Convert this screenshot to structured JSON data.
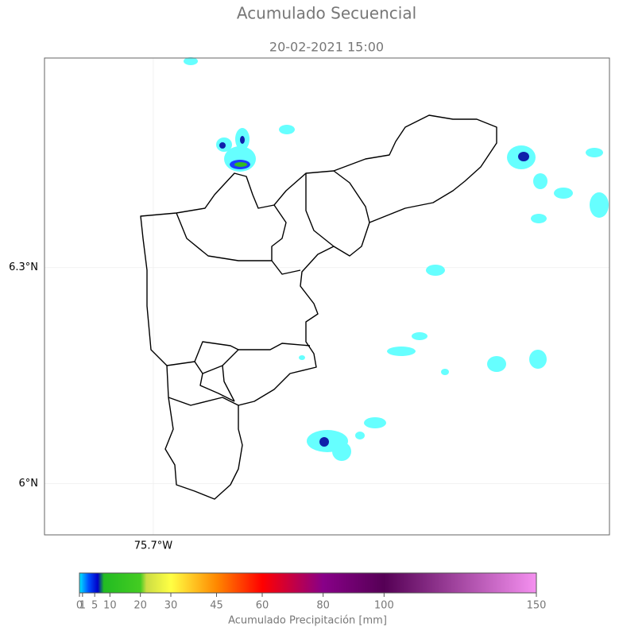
{
  "title": "Acumulado Secuencial",
  "subtitle": "20-02-2021 15:00",
  "map": {
    "latlim": [
      5.929,
      6.591
    ],
    "lonlim": [
      -75.851,
      -75.067
    ],
    "lat_ticks": [
      {
        "value": 6.3,
        "label": "6.3°N"
      },
      {
        "value": 6,
        "label": "6°N"
      }
    ],
    "lon_ticks": [
      {
        "value": -75.7,
        "label": "75.7°W"
      }
    ]
  },
  "colorbar": {
    "label": "Acumulado Precipitación [mm]",
    "lim": [
      0,
      150
    ],
    "ticks": [
      0,
      1,
      5,
      10,
      20,
      30,
      45,
      60,
      80,
      100,
      150
    ],
    "cmap": [
      [
        0,
        "#00e8ff"
      ],
      [
        3,
        "#0050ff"
      ],
      [
        6,
        "#0000c8"
      ],
      [
        8,
        "#22bb22"
      ],
      [
        20,
        "#44cc22"
      ],
      [
        22,
        "#ccdd44"
      ],
      [
        30,
        "#ffff44"
      ],
      [
        45,
        "#ff8800"
      ],
      [
        60,
        "#ff0000"
      ],
      [
        80,
        "#880088"
      ],
      [
        100,
        "#550055"
      ],
      [
        150,
        "#f590f0"
      ]
    ]
  }
}
